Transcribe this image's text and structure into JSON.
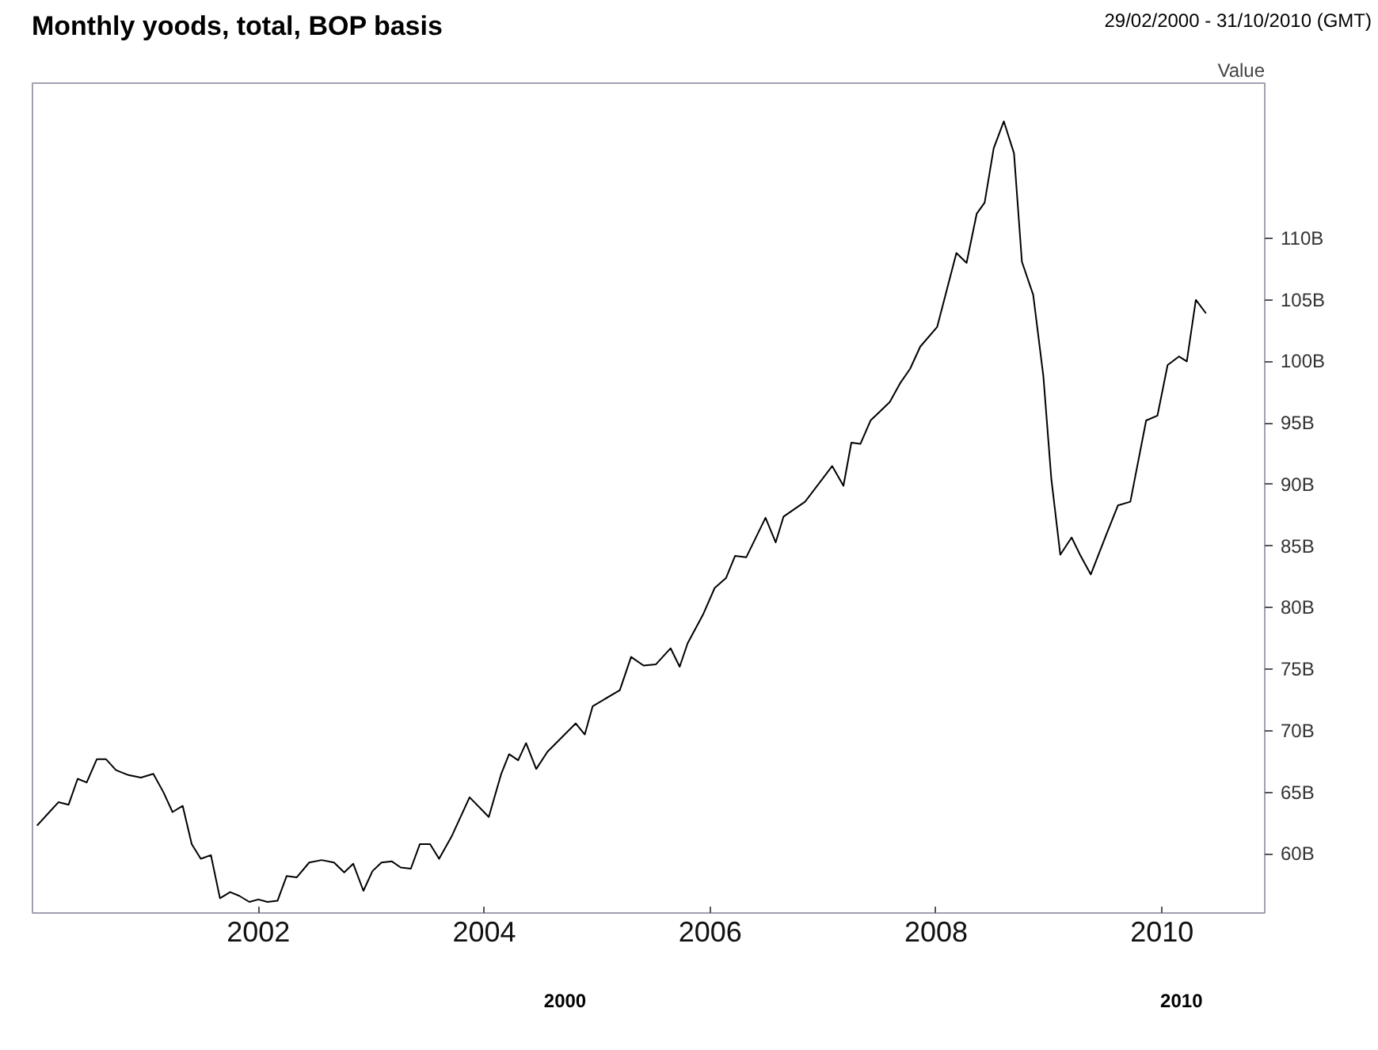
{
  "chart_data": {
    "type": "line",
    "title": "Monthly yoods, total, BOP basis",
    "subtitle": "29/02/2000 - 31/10/2010 (GMT)",
    "ylabel": "Value",
    "x": [
      2000.04,
      2000.15,
      2000.23,
      2000.32,
      2000.4,
      2000.48,
      2000.57,
      2000.65,
      2000.74,
      2000.85,
      2000.96,
      2001.07,
      2001.16,
      2001.24,
      2001.33,
      2001.41,
      2001.49,
      2001.58,
      2001.66,
      2001.75,
      2001.83,
      2001.92,
      2002.0,
      2002.08,
      2002.17,
      2002.25,
      2002.34,
      2002.45,
      2002.56,
      2002.67,
      2002.76,
      2002.84,
      2002.93,
      2003.01,
      2003.09,
      2003.18,
      2003.26,
      2003.35,
      2003.43,
      2003.52,
      2003.6,
      2003.71,
      2003.87,
      2004.04,
      2004.15,
      2004.22,
      2004.3,
      2004.37,
      2004.46,
      2004.56,
      2004.81,
      2004.89,
      2004.96,
      2005.2,
      2005.3,
      2005.41,
      2005.52,
      2005.65,
      2005.73,
      2005.8,
      2005.94,
      2006.04,
      2006.14,
      2006.22,
      2006.32,
      2006.49,
      2006.58,
      2006.65,
      2006.84,
      2007.08,
      2007.18,
      2007.25,
      2007.33,
      2007.42,
      2007.59,
      2007.68,
      2007.77,
      2007.86,
      2008.01,
      2008.18,
      2008.27,
      2008.36,
      2008.43,
      2008.51,
      2008.6,
      2008.69,
      2008.76,
      2008.86,
      2008.95,
      2009.02,
      2009.1,
      2009.2,
      2009.28,
      2009.37,
      2009.51,
      2009.61,
      2009.72,
      2009.86,
      2009.96,
      2010.05,
      2010.15,
      2010.22,
      2010.3,
      2010.39
    ],
    "series": [
      {
        "color": "#000000",
        "values": [
          62.3,
          63.4,
          64.2,
          64.0,
          66.1,
          65.8,
          67.7,
          67.7,
          66.8,
          66.4,
          66.2,
          66.5,
          65.0,
          63.4,
          63.9,
          60.8,
          59.6,
          59.9,
          56.4,
          56.9,
          56.6,
          56.1,
          56.3,
          56.1,
          56.2,
          58.2,
          58.1,
          59.3,
          59.5,
          59.3,
          58.5,
          59.2,
          57.0,
          58.6,
          59.3,
          59.4,
          58.9,
          58.8,
          60.8,
          60.8,
          59.6,
          61.4,
          64.6,
          63.0,
          66.5,
          68.1,
          67.6,
          69.0,
          66.9,
          68.3,
          70.6,
          69.7,
          72.0,
          73.3,
          76.0,
          75.3,
          75.4,
          76.7,
          75.2,
          77.1,
          79.5,
          81.6,
          82.4,
          84.2,
          84.1,
          87.3,
          85.3,
          87.4,
          88.6,
          91.5,
          89.9,
          93.4,
          93.3,
          95.2,
          96.7,
          98.2,
          99.4,
          101.2,
          102.8,
          108.8,
          108.0,
          112.0,
          112.9,
          117.3,
          119.5,
          116.9,
          108.1,
          105.4,
          98.8,
          90.5,
          84.3,
          85.7,
          84.2,
          82.7,
          86.0,
          88.3,
          88.6,
          95.2,
          95.6,
          99.7,
          100.4,
          100.0,
          105.0,
          103.9
        ]
      }
    ],
    "xlim": [
      2000.0,
      2010.91
    ],
    "xticks": [
      2002,
      2004,
      2006,
      2008,
      2010
    ],
    "ylim": [
      55.2,
      122.6
    ],
    "yticks": [
      {
        "value": 60,
        "label": "60B"
      },
      {
        "value": 65,
        "label": "65B"
      },
      {
        "value": 70,
        "label": "70B"
      },
      {
        "value": 75,
        "label": "75B"
      },
      {
        "value": 80,
        "label": "80B"
      },
      {
        "value": 85,
        "label": "85B"
      },
      {
        "value": 90,
        "label": "90B"
      },
      {
        "value": 95,
        "label": "95B"
      },
      {
        "value": 100,
        "label": "100B"
      },
      {
        "value": 105,
        "label": "105B"
      },
      {
        "value": 110,
        "label": "110B"
      }
    ],
    "annotations": [
      "2000",
      "2010"
    ],
    "grid": false,
    "marker": "none",
    "line_style": "solid"
  }
}
